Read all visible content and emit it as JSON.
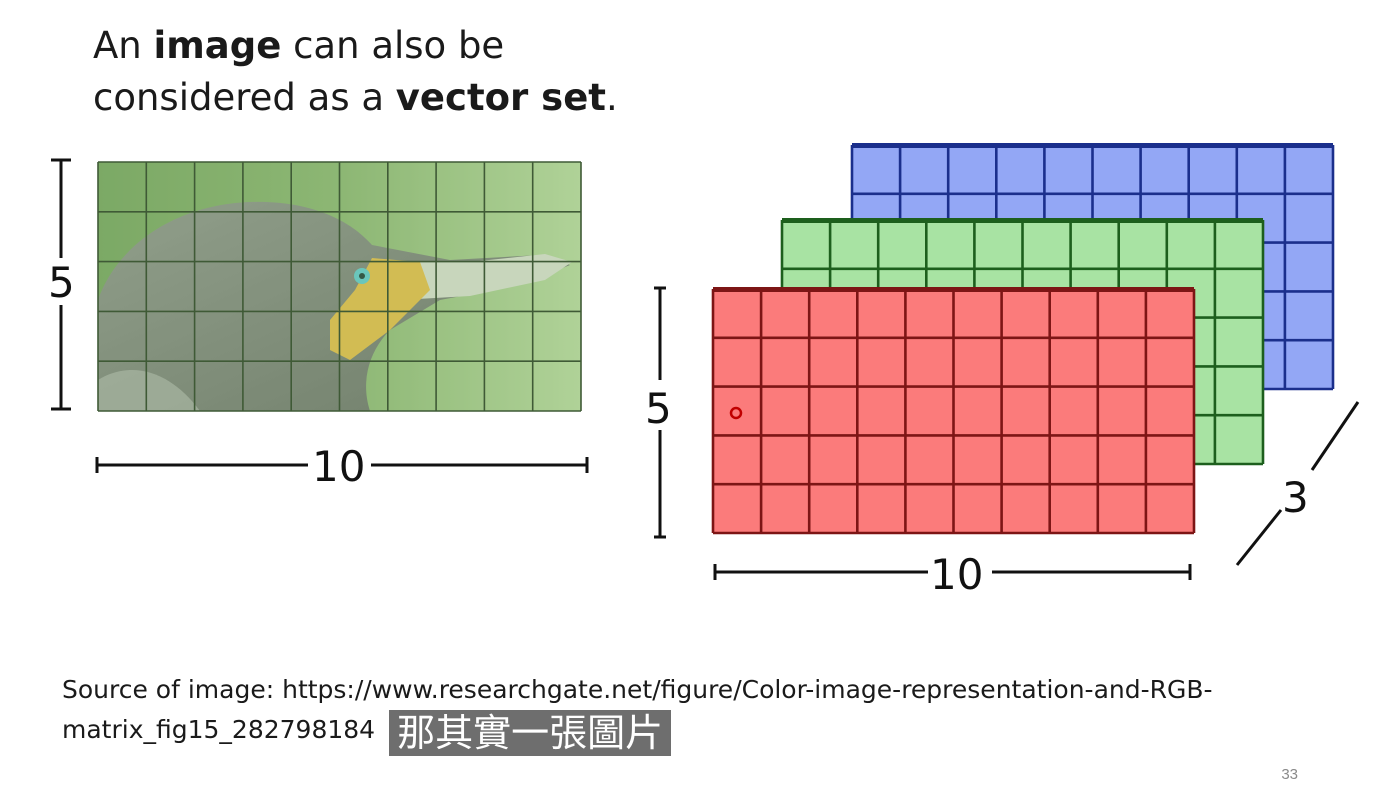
{
  "title": {
    "part1": "An ",
    "bold1": "image",
    "part2": " can also be",
    "part3": "considered as a ",
    "bold2": "vector set",
    "part4": "."
  },
  "left_figure": {
    "height_label": "5",
    "width_label": "10",
    "grid_cols": 10,
    "grid_rows": 5
  },
  "right_figure": {
    "height_label": "5",
    "width_label": "10",
    "depth_label": "3",
    "layers": [
      {
        "name": "blue",
        "fill": "#93a7f5",
        "line": "#1b2f8c"
      },
      {
        "name": "green",
        "fill": "#a8e3a3",
        "line": "#1d5f1d"
      },
      {
        "name": "red",
        "fill": "#fb7b7b",
        "line": "#7d1515"
      }
    ]
  },
  "source_text": "Source of image: https://www.researchgate.net/figure/Color-image-representation-and-RGB-matrix_fig15_282798184",
  "subtitle": "那其實一張圖片",
  "page_number": "33"
}
